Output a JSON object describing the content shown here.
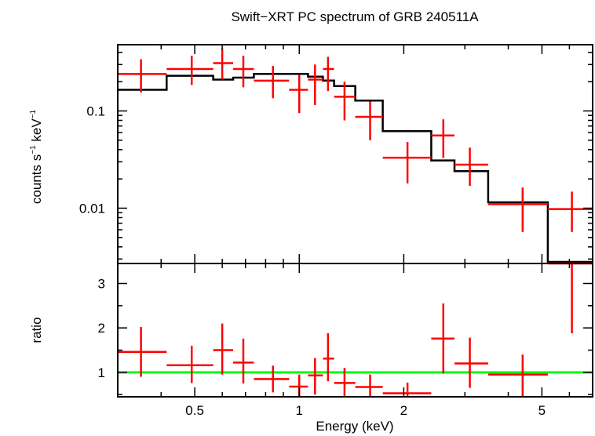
{
  "chart_data": {
    "type": "scatter",
    "title": "Swift−XRT PC spectrum of GRB 240511A",
    "xlabel": "Energy (keV)",
    "x_scale": "log",
    "xlim": [
      0.3,
      7.0
    ],
    "x_ticks": [
      {
        "value": 0.5,
        "label": "0.5"
      },
      {
        "value": 1,
        "label": "1"
      },
      {
        "value": 2,
        "label": "2"
      },
      {
        "value": 5,
        "label": "5"
      }
    ],
    "colors": {
      "data": "#ff0000",
      "model": "#000000",
      "unity": "#00ff00",
      "axes": "#000000"
    },
    "panels": [
      {
        "name": "spectrum",
        "ylabel_main": "counts s",
        "ylabel_sup1": "−1",
        "ylabel_mid": " keV",
        "ylabel_sup2": "−1",
        "y_scale": "log",
        "ylim": [
          0.0027,
          0.48
        ],
        "y_ticks": [
          {
            "value": 0.1,
            "label": "0.1"
          },
          {
            "value": 0.01,
            "label": "0.01"
          }
        ],
        "data": [
          {
            "x": 0.35,
            "xlo": 0.3,
            "xhi": 0.415,
            "y": 0.24,
            "ylo": 0.155,
            "yhi": 0.34
          },
          {
            "x": 0.49,
            "xlo": 0.415,
            "xhi": 0.565,
            "y": 0.27,
            "ylo": 0.185,
            "yhi": 0.37
          },
          {
            "x": 0.6,
            "xlo": 0.565,
            "xhi": 0.645,
            "y": 0.31,
            "ylo": 0.21,
            "yhi": 0.44
          },
          {
            "x": 0.69,
            "xlo": 0.645,
            "xhi": 0.74,
            "y": 0.27,
            "ylo": 0.175,
            "yhi": 0.37
          },
          {
            "x": 0.84,
            "xlo": 0.74,
            "xhi": 0.935,
            "y": 0.205,
            "ylo": 0.135,
            "yhi": 0.29
          },
          {
            "x": 1.0,
            "xlo": 0.935,
            "xhi": 1.06,
            "y": 0.165,
            "ylo": 0.095,
            "yhi": 0.235
          },
          {
            "x": 1.11,
            "xlo": 1.06,
            "xhi": 1.17,
            "y": 0.21,
            "ylo": 0.115,
            "yhi": 0.3
          },
          {
            "x": 1.21,
            "xlo": 1.17,
            "xhi": 1.26,
            "y": 0.27,
            "ylo": 0.16,
            "yhi": 0.36
          },
          {
            "x": 1.35,
            "xlo": 1.26,
            "xhi": 1.45,
            "y": 0.14,
            "ylo": 0.08,
            "yhi": 0.2
          },
          {
            "x": 1.6,
            "xlo": 1.45,
            "xhi": 1.74,
            "y": 0.087,
            "ylo": 0.05,
            "yhi": 0.125
          },
          {
            "x": 2.05,
            "xlo": 1.74,
            "xhi": 2.4,
            "y": 0.033,
            "ylo": 0.018,
            "yhi": 0.048
          },
          {
            "x": 2.6,
            "xlo": 2.4,
            "xhi": 2.8,
            "y": 0.056,
            "ylo": 0.033,
            "yhi": 0.082
          },
          {
            "x": 3.1,
            "xlo": 2.8,
            "xhi": 3.5,
            "y": 0.028,
            "ylo": 0.017,
            "yhi": 0.042
          },
          {
            "x": 4.4,
            "xlo": 3.5,
            "xhi": 5.2,
            "y": 0.011,
            "ylo": 0.0057,
            "yhi": 0.0163
          },
          {
            "x": 6.1,
            "xlo": 5.2,
            "xhi": 7.0,
            "y": 0.0098,
            "ylo": 0.0057,
            "yhi": 0.0148
          }
        ],
        "model_steps": [
          {
            "xlo": 0.3,
            "xhi": 0.415,
            "y": 0.165
          },
          {
            "xlo": 0.415,
            "xhi": 0.565,
            "y": 0.23
          },
          {
            "xlo": 0.565,
            "xhi": 0.645,
            "y": 0.21
          },
          {
            "xlo": 0.645,
            "xhi": 0.74,
            "y": 0.22
          },
          {
            "xlo": 0.74,
            "xhi": 0.935,
            "y": 0.24
          },
          {
            "xlo": 0.935,
            "xhi": 1.06,
            "y": 0.24
          },
          {
            "xlo": 1.06,
            "xhi": 1.17,
            "y": 0.225
          },
          {
            "xlo": 1.17,
            "xhi": 1.26,
            "y": 0.205
          },
          {
            "xlo": 1.26,
            "xhi": 1.45,
            "y": 0.18
          },
          {
            "xlo": 1.45,
            "xhi": 1.74,
            "y": 0.128
          },
          {
            "xlo": 1.74,
            "xhi": 2.4,
            "y": 0.062
          },
          {
            "xlo": 2.4,
            "xhi": 2.8,
            "y": 0.031
          },
          {
            "xlo": 2.8,
            "xhi": 3.5,
            "y": 0.024
          },
          {
            "xlo": 3.5,
            "xhi": 5.2,
            "y": 0.0115
          },
          {
            "xlo": 5.2,
            "xhi": 7.0,
            "y": 0.0028
          }
        ]
      },
      {
        "name": "ratio",
        "ylabel": "ratio",
        "y_scale": "linear",
        "ylim": [
          0.45,
          3.45
        ],
        "y_ticks": [
          {
            "value": 1,
            "label": "1"
          },
          {
            "value": 2,
            "label": "2"
          },
          {
            "value": 3,
            "label": "3"
          }
        ],
        "unity_line": 1,
        "data": [
          {
            "x": 0.35,
            "xlo": 0.3,
            "xhi": 0.415,
            "y": 1.46,
            "ylo": 0.9,
            "yhi": 2.02
          },
          {
            "x": 0.49,
            "xlo": 0.415,
            "xhi": 0.565,
            "y": 1.16,
            "ylo": 0.76,
            "yhi": 1.6
          },
          {
            "x": 0.6,
            "xlo": 0.565,
            "xhi": 0.645,
            "y": 1.5,
            "ylo": 0.95,
            "yhi": 2.1
          },
          {
            "x": 0.69,
            "xlo": 0.645,
            "xhi": 0.74,
            "y": 1.22,
            "ylo": 0.75,
            "yhi": 1.76
          },
          {
            "x": 0.84,
            "xlo": 0.74,
            "xhi": 0.935,
            "y": 0.85,
            "ylo": 0.55,
            "yhi": 1.15
          },
          {
            "x": 1.0,
            "xlo": 0.935,
            "xhi": 1.06,
            "y": 0.68,
            "ylo": 0.4,
            "yhi": 0.95
          },
          {
            "x": 1.11,
            "xlo": 1.06,
            "xhi": 1.17,
            "y": 0.93,
            "ylo": 0.5,
            "yhi": 1.32
          },
          {
            "x": 1.21,
            "xlo": 1.17,
            "xhi": 1.26,
            "y": 1.31,
            "ylo": 0.8,
            "yhi": 1.88
          },
          {
            "x": 1.35,
            "xlo": 1.26,
            "xhi": 1.45,
            "y": 0.76,
            "ylo": 0.45,
            "yhi": 1.1
          },
          {
            "x": 1.6,
            "xlo": 1.45,
            "xhi": 1.74,
            "y": 0.67,
            "ylo": 0.4,
            "yhi": 0.95
          },
          {
            "x": 2.05,
            "xlo": 1.74,
            "xhi": 2.4,
            "y": 0.53,
            "ylo": 0.3,
            "yhi": 0.77
          },
          {
            "x": 2.6,
            "xlo": 2.4,
            "xhi": 2.8,
            "y": 1.76,
            "ylo": 0.97,
            "yhi": 2.55
          },
          {
            "x": 3.1,
            "xlo": 2.8,
            "xhi": 3.5,
            "y": 1.2,
            "ylo": 0.65,
            "yhi": 1.78
          },
          {
            "x": 4.4,
            "xlo": 3.5,
            "xhi": 5.2,
            "y": 0.95,
            "ylo": 0.45,
            "yhi": 1.4
          },
          {
            "x": 6.1,
            "xlo": 5.2,
            "xhi": 7.0,
            "y": 3.45,
            "ylo": 1.88,
            "yhi": 3.45
          }
        ]
      }
    ]
  }
}
